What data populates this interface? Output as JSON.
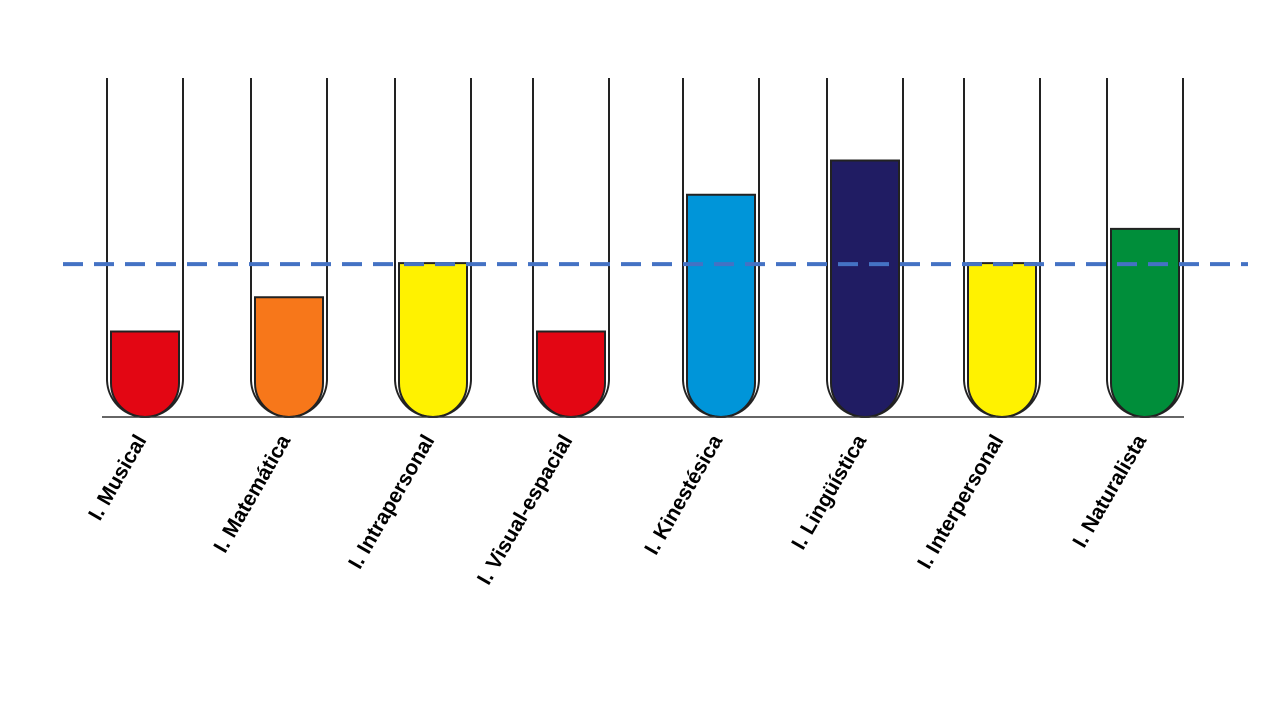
{
  "chart_data": {
    "type": "bar",
    "style": "test-tubes",
    "categories": [
      "I. Musical",
      "I. Matemática",
      "I. Intrapersonal",
      "I. Visual-espacial",
      "I. Kinestésica",
      "I. Lingüística",
      "I. Interpersonal",
      "I. Naturalista"
    ],
    "values": [
      1,
      1.4,
      1.8,
      1,
      2.6,
      3,
      1.8,
      2.2
    ],
    "colors": [
      "#e30613",
      "#f7771a",
      "#fff200",
      "#e30613",
      "#0095d9",
      "#201c63",
      "#fff200",
      "#008e3a"
    ],
    "ylim": [
      0,
      4
    ],
    "reference_line": {
      "value": 1.8,
      "style": "dashed",
      "color": "#4472c4"
    },
    "title": "",
    "xlabel": "",
    "ylabel": "",
    "grid": false,
    "legend": "none"
  }
}
